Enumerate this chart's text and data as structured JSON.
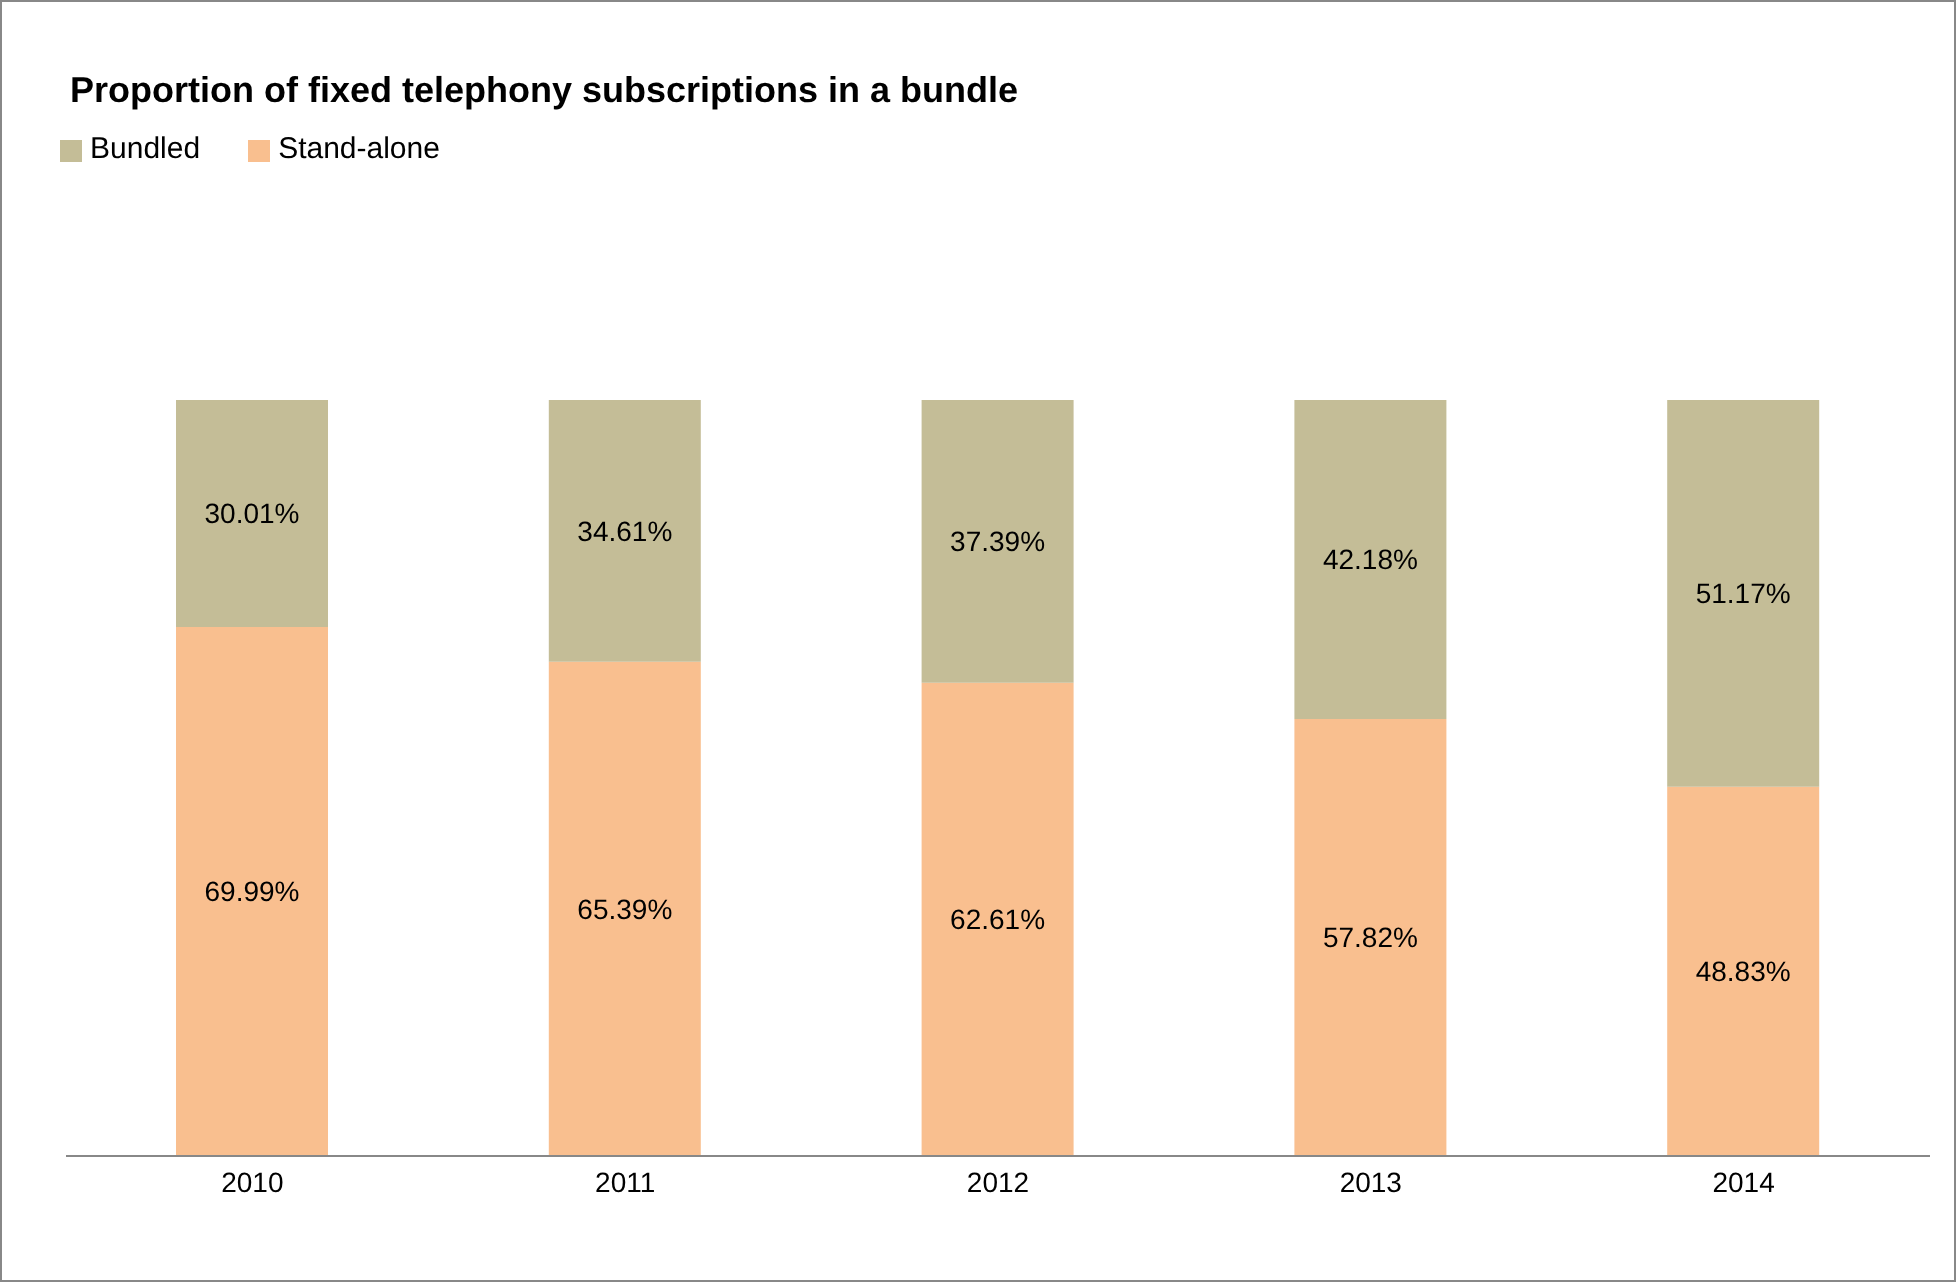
{
  "chart_data": {
    "type": "bar",
    "title": "Proportion of fixed telephony subscriptions in a bundle",
    "categories": [
      "2010",
      "2011",
      "2012",
      "2013",
      "2014"
    ],
    "stacked": true,
    "legend": "top left",
    "tick_labels": "x",
    "ylim": [
      0,
      100
    ],
    "series": [
      {
        "name": "Stand-alone",
        "color": "#f9bf8f",
        "values": [
          69.99,
          65.39,
          62.61,
          57.82,
          48.83
        ],
        "value_labels": [
          "69.99%",
          "65.39%",
          "62.61%",
          "57.82%",
          "48.83%"
        ]
      },
      {
        "name": "Bundled",
        "color": "#c4bd97",
        "values": [
          30.01,
          34.61,
          37.39,
          42.18,
          51.17
        ],
        "value_labels": [
          "30.01%",
          "34.61%",
          "37.39%",
          "42.18%",
          "51.17%"
        ]
      }
    ]
  }
}
